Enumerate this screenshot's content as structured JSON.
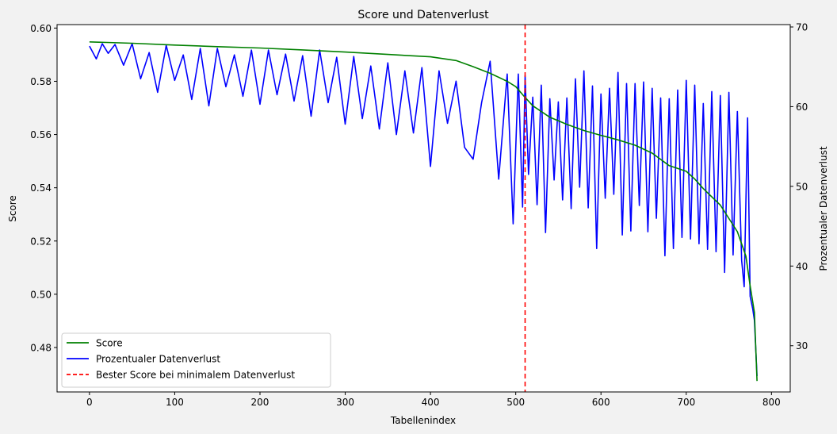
{
  "chart_data": {
    "type": "line",
    "title": "Score und Datenverlust",
    "xlabel": "Tabellenindex",
    "ylabel": "Score",
    "y2label": "Prozentualer Datenverlust",
    "xlim": [
      -38,
      822
    ],
    "ylim": [
      0.4633,
      0.6013
    ],
    "y2lim": [
      24.2,
      70.3
    ],
    "xticks": [
      0,
      100,
      200,
      300,
      400,
      500,
      600,
      700,
      800
    ],
    "yticks": [
      0.48,
      0.5,
      0.52,
      0.54,
      0.56,
      0.58,
      0.6
    ],
    "y2ticks": [
      30,
      40,
      50,
      60,
      70
    ],
    "legend_position": "lower-left",
    "legend": [
      "Score",
      "Prozentualer Datenverlust",
      "Bester Score bei minimalem Datenverlust"
    ],
    "vline": {
      "x": 511,
      "color": "#ff0000",
      "style": "dashed"
    },
    "score_series": {
      "name": "Score",
      "color": "#008000",
      "x": [
        0,
        50,
        100,
        150,
        200,
        250,
        300,
        350,
        400,
        430,
        450,
        470,
        490,
        500,
        510,
        520,
        540,
        560,
        580,
        600,
        620,
        640,
        660,
        680,
        700,
        710,
        720,
        740,
        760,
        770,
        775,
        780,
        783
      ],
      "y": [
        0.5948,
        0.5943,
        0.5936,
        0.593,
        0.5925,
        0.5918,
        0.591,
        0.5901,
        0.5892,
        0.5878,
        0.5855,
        0.583,
        0.58,
        0.578,
        0.5743,
        0.5708,
        0.5665,
        0.5638,
        0.5615,
        0.5597,
        0.558,
        0.556,
        0.553,
        0.5483,
        0.5462,
        0.5433,
        0.5397,
        0.5335,
        0.5235,
        0.5143,
        0.5032,
        0.4932,
        0.4674
      ]
    },
    "loss_series": {
      "name": "Prozentualer Datenverlust",
      "color": "#0000ff",
      "x": [
        0,
        8,
        15,
        22,
        30,
        40,
        50,
        60,
        70,
        80,
        90,
        100,
        110,
        120,
        130,
        140,
        150,
        160,
        170,
        180,
        190,
        200,
        210,
        220,
        230,
        240,
        250,
        260,
        270,
        280,
        290,
        300,
        310,
        320,
        330,
        340,
        350,
        360,
        370,
        380,
        390,
        400,
        410,
        420,
        430,
        440,
        450,
        460,
        470,
        480,
        490,
        497,
        503,
        508,
        511,
        515,
        520,
        525,
        530,
        535,
        540,
        545,
        550,
        555,
        560,
        565,
        570,
        575,
        580,
        585,
        590,
        595,
        600,
        605,
        610,
        615,
        620,
        625,
        630,
        635,
        640,
        645,
        650,
        655,
        660,
        665,
        670,
        675,
        680,
        685,
        690,
        695,
        700,
        705,
        710,
        715,
        720,
        725,
        730,
        735,
        740,
        745,
        750,
        755,
        760,
        765,
        768,
        772,
        775,
        778,
        780,
        783
      ],
      "y": [
        67.6,
        66,
        67.9,
        66.7,
        67.8,
        65.2,
        67.9,
        63.5,
        66.8,
        61.8,
        67.7,
        63.3,
        66.5,
        60.9,
        67.3,
        60.1,
        67.3,
        62.5,
        66.5,
        61.3,
        67.1,
        60.3,
        67.1,
        61.5,
        66.6,
        60.7,
        66.4,
        58.8,
        67.1,
        60.5,
        66.2,
        57.8,
        66.3,
        58.5,
        65.1,
        57.2,
        65.5,
        56.5,
        64.5,
        56.7,
        64.9,
        52.5,
        64.5,
        57.9,
        63.2,
        54.9,
        53.4,
        60.5,
        65.7,
        50.9,
        64.1,
        45.3,
        64.1,
        47.4,
        63.9,
        51.5,
        61.2,
        47.7,
        62.7,
        44.2,
        61,
        50.8,
        60.6,
        48.3,
        61.1,
        47.2,
        63.5,
        49.9,
        64.5,
        47.3,
        62.6,
        42.2,
        61.6,
        48.5,
        62.3,
        49,
        64.3,
        43.9,
        62.9,
        44.4,
        62.9,
        47.6,
        63.1,
        44.3,
        62.3,
        46,
        61.1,
        41.3,
        61,
        42.2,
        62.1,
        43.6,
        63.3,
        43.4,
        62.7,
        42.8,
        60.4,
        42.1,
        61.9,
        41.8,
        61.4,
        39.2,
        61.8,
        41.4,
        59.4,
        40.7,
        37.4,
        58.6,
        36.2,
        34.6,
        33.2,
        26.2
      ]
    }
  }
}
